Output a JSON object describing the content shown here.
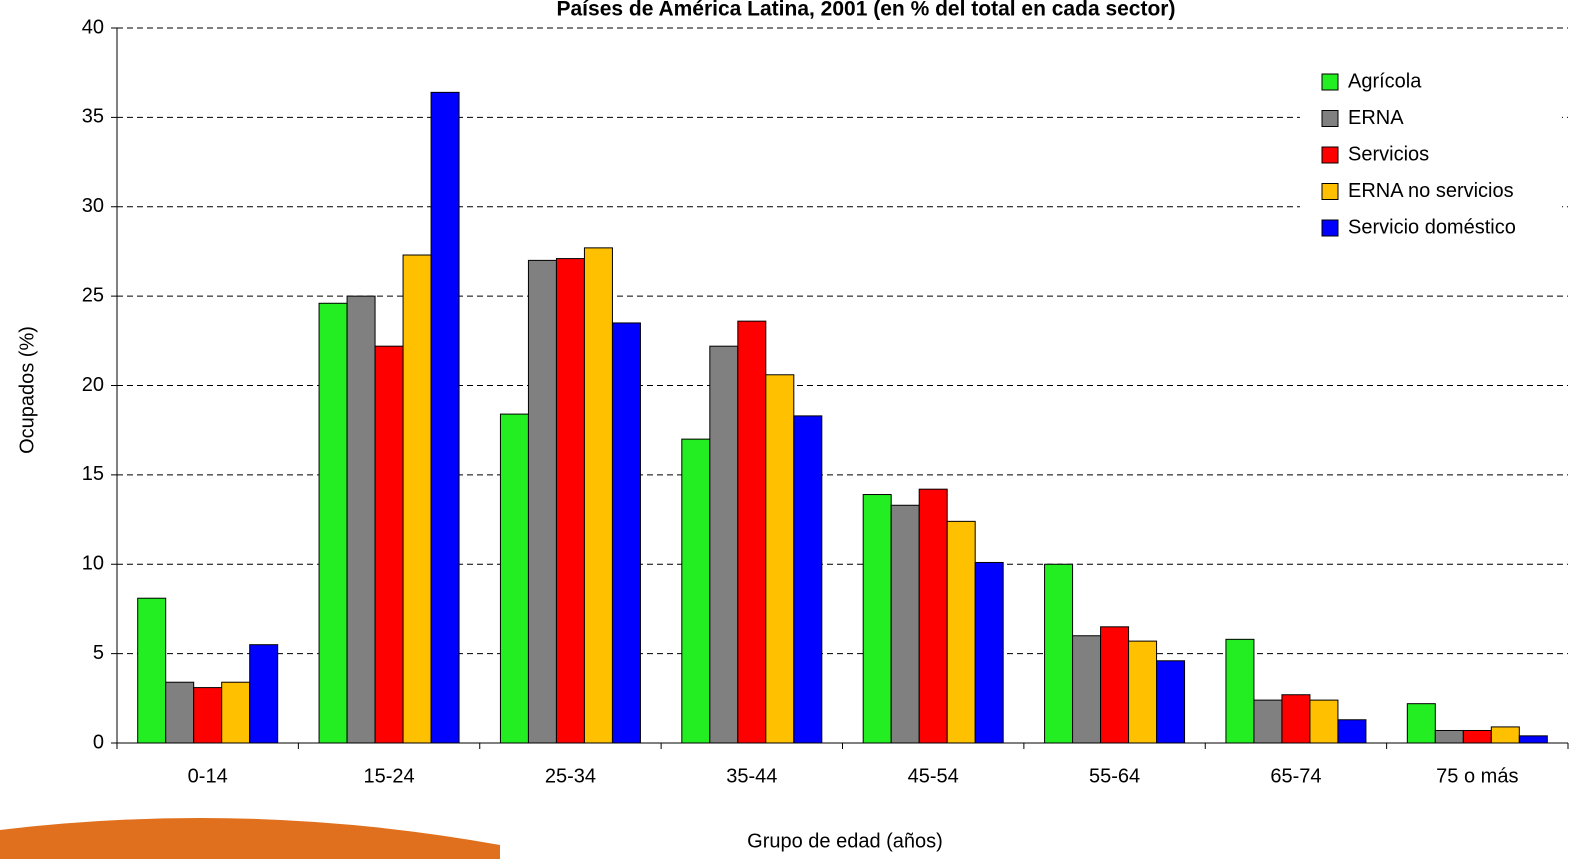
{
  "chart_data": {
    "type": "bar",
    "title": "Países de América Latina, 2001 (en % del total en cada sector)",
    "x_label": "Grupo de edad (años)",
    "y_label": "Ocupados (%)",
    "categories": [
      "0-14",
      "15-24",
      "25-34",
      "35-44",
      "45-54",
      "55-64",
      "65-74",
      "75 o más"
    ],
    "series": [
      {
        "name": "Agrícola",
        "color": "#22ee22",
        "values": [
          8.1,
          24.6,
          18.4,
          17.0,
          13.9,
          10.0,
          5.8,
          2.2
        ]
      },
      {
        "name": "ERNA",
        "color": "#808080",
        "values": [
          3.4,
          25.0,
          27.0,
          22.2,
          13.3,
          6.0,
          2.4,
          0.7
        ]
      },
      {
        "name": "Servicios",
        "color": "#ff0000",
        "values": [
          3.1,
          22.2,
          27.1,
          23.6,
          14.2,
          6.5,
          2.7,
          0.7
        ]
      },
      {
        "name": "ERNA no servicios",
        "color": "#ffc000",
        "values": [
          3.4,
          27.3,
          27.7,
          20.6,
          12.4,
          5.7,
          2.4,
          0.9
        ]
      },
      {
        "name": "Servicio doméstico",
        "color": "#0000ff",
        "values": [
          5.5,
          36.4,
          23.5,
          18.3,
          10.1,
          4.6,
          1.3,
          0.4
        ]
      }
    ],
    "ylim": [
      0,
      40
    ],
    "yticks": [
      0,
      5,
      10,
      15,
      20,
      25,
      30,
      35,
      40
    ],
    "grid": true,
    "legend": "top-right"
  }
}
